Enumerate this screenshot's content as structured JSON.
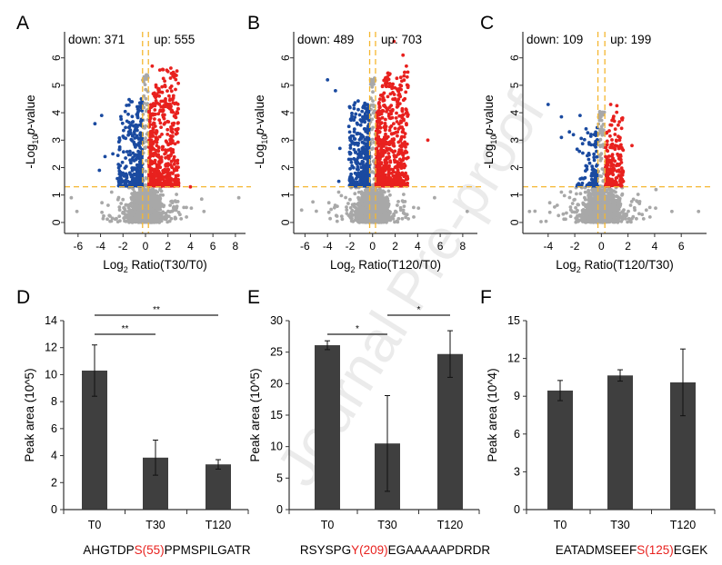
{
  "watermark": "Journal Pre-proof",
  "colors": {
    "up": "#e8211e",
    "down": "#1a4aa0",
    "ns": "#a8a8a8",
    "threshold": "#f5b731",
    "bar": "#3f3f3f"
  },
  "chart_data": [
    {
      "panel": "A",
      "type": "scatter",
      "xlabel_pre": "Log",
      "xlabel_sub": "2",
      "xlabel_post": " Ratio(T30/T0)",
      "ylabel_pre": "-Log",
      "ylabel_sub": "10",
      "ylabel_p": "p",
      "ylabel_post": "-value",
      "down_label": "down: 371",
      "up_label": "up: 555",
      "down_count": 371,
      "up_count": 555,
      "xticks": [
        -6,
        -4,
        -2,
        0,
        2,
        4,
        6,
        8
      ],
      "yticks": [
        0,
        1,
        2,
        3,
        4,
        5,
        6
      ],
      "xlim": [
        -7.2,
        8.9
      ],
      "ylim": [
        -0.4,
        6.95
      ],
      "fc_threshold": 0.26,
      "p_threshold": 1.3,
      "max_up_x": 2.9,
      "max_down_x": -2.4,
      "max_y": 5.6,
      "outliers": [
        {
          "x": -4.5,
          "y": 3.6,
          "c": "down"
        },
        {
          "x": -3.9,
          "y": 3.9,
          "c": "down"
        },
        {
          "x": -4.1,
          "y": 1.9,
          "c": "down"
        },
        {
          "x": -3.6,
          "y": 2.4,
          "c": "down"
        },
        {
          "x": -2.9,
          "y": 2.5,
          "c": "down"
        },
        {
          "x": -2.3,
          "y": 3.0,
          "c": "down"
        },
        {
          "x": -2.5,
          "y": 1.6,
          "c": "down"
        },
        {
          "x": 4.0,
          "y": 1.3,
          "c": "up"
        },
        {
          "x": 0.6,
          "y": 5.7,
          "c": "up"
        },
        {
          "x": 2.0,
          "y": 5.5,
          "c": "up"
        },
        {
          "x": 2.6,
          "y": 5.4,
          "c": "up"
        },
        {
          "x": 8.3,
          "y": 0.9,
          "c": "ns"
        },
        {
          "x": -6.6,
          "y": 0.9,
          "c": "ns"
        },
        {
          "x": -6.1,
          "y": 0.4,
          "c": "ns"
        },
        {
          "x": 5.2,
          "y": 0.4,
          "c": "ns"
        },
        {
          "x": 5.0,
          "y": 0.85,
          "c": "ns"
        }
      ]
    },
    {
      "panel": "B",
      "type": "scatter",
      "xlabel_pre": "Log",
      "xlabel_sub": "2",
      "xlabel_post": " Ratio(T120/T0)",
      "ylabel_pre": "-Log",
      "ylabel_sub": "10",
      "ylabel_p": "p",
      "ylabel_post": "-value",
      "down_label": "down: 489",
      "up_label": "up: 703",
      "down_count": 489,
      "up_count": 703,
      "xticks": [
        -6,
        -4,
        -2,
        0,
        2,
        4,
        6,
        8
      ],
      "yticks": [
        0,
        1,
        2,
        3,
        4,
        5,
        6
      ],
      "xlim": [
        -7.0,
        9.3
      ],
      "ylim": [
        -0.4,
        6.95
      ],
      "fc_threshold": 0.26,
      "p_threshold": 1.3,
      "max_up_x": 3.1,
      "max_down_x": -2.0,
      "max_y": 5.5,
      "outliers": [
        {
          "x": -4.0,
          "y": 5.2,
          "c": "down"
        },
        {
          "x": -3.3,
          "y": 4.8,
          "c": "down"
        },
        {
          "x": -2.1,
          "y": 3.5,
          "c": "down"
        },
        {
          "x": -2.9,
          "y": 2.7,
          "c": "down"
        },
        {
          "x": -3.0,
          "y": 1.5,
          "c": "down"
        },
        {
          "x": -2.1,
          "y": 2.3,
          "c": "down"
        },
        {
          "x": 4.9,
          "y": 3.0,
          "c": "up"
        },
        {
          "x": 1.9,
          "y": 6.6,
          "c": "up"
        },
        {
          "x": 2.7,
          "y": 6.1,
          "c": "up"
        },
        {
          "x": 3.0,
          "y": 5.7,
          "c": "up"
        },
        {
          "x": 3.1,
          "y": 5.0,
          "c": "up"
        },
        {
          "x": 8.4,
          "y": 0.4,
          "c": "ns"
        },
        {
          "x": -6.3,
          "y": 0.45,
          "c": "ns"
        },
        {
          "x": 5.5,
          "y": 0.9,
          "c": "ns"
        },
        {
          "x": -5.3,
          "y": 0.75,
          "c": "ns"
        }
      ]
    },
    {
      "panel": "C",
      "type": "scatter",
      "xlabel_pre": "Log",
      "xlabel_sub": "2",
      "xlabel_post": " Ratio(T120/T30)",
      "ylabel_pre": "-Log",
      "ylabel_sub": "10",
      "ylabel_p": "p",
      "ylabel_post": "-value",
      "down_label": "down: 109",
      "up_label": "up: 199",
      "down_count": 109,
      "up_count": 199,
      "xticks": [
        -4,
        -2,
        0,
        2,
        4,
        6
      ],
      "yticks": [
        0,
        1,
        2,
        3,
        4,
        5,
        6
      ],
      "xlim": [
        -5.9,
        7.9
      ],
      "ylim": [
        -0.4,
        6.95
      ],
      "fc_threshold": 0.26,
      "p_threshold": 1.3,
      "max_up_x": 1.6,
      "max_down_x": -1.8,
      "max_y": 4.3,
      "outliers": [
        {
          "x": -4.0,
          "y": 4.3,
          "c": "down"
        },
        {
          "x": -3.0,
          "y": 3.85,
          "c": "down"
        },
        {
          "x": -1.6,
          "y": 3.9,
          "c": "down"
        },
        {
          "x": -2.4,
          "y": 3.3,
          "c": "down"
        },
        {
          "x": -2.1,
          "y": 3.2,
          "c": "down"
        },
        {
          "x": -3.0,
          "y": 3.1,
          "c": "down"
        },
        {
          "x": 2.3,
          "y": 2.8,
          "c": "up"
        },
        {
          "x": 0.7,
          "y": 4.3,
          "c": "up"
        },
        {
          "x": 7.3,
          "y": 0.4,
          "c": "ns"
        },
        {
          "x": -5.4,
          "y": 0.4,
          "c": "ns"
        },
        {
          "x": 4.1,
          "y": 1.2,
          "c": "ns"
        },
        {
          "x": 5.3,
          "y": 0.4,
          "c": "ns"
        }
      ]
    },
    {
      "panel": "D",
      "type": "bar",
      "categories": [
        "T0",
        "T30",
        "T120"
      ],
      "values": [
        10.3,
        3.85,
        3.35
      ],
      "errors": [
        1.9,
        1.3,
        0.35
      ],
      "ylabel": "Peak area (10^5)",
      "ylim": [
        0,
        14
      ],
      "yticks": [
        0,
        2,
        4,
        6,
        8,
        10,
        12,
        14
      ],
      "significance": [
        {
          "from": 0,
          "to": 2,
          "label": "**",
          "level": "high"
        },
        {
          "from": 0,
          "to": 1,
          "label": "**",
          "level": "low"
        }
      ],
      "peptide": {
        "pre": "AHGTDP",
        "site": "S(55)",
        "post": "PPMSPILGATR"
      }
    },
    {
      "panel": "E",
      "type": "bar",
      "categories": [
        "T0",
        "T30",
        "T120"
      ],
      "values": [
        26.1,
        10.5,
        24.7
      ],
      "errors": [
        0.7,
        7.6,
        3.7
      ],
      "ylabel": "Peak area (10^5)",
      "ylim": [
        0,
        30
      ],
      "yticks": [
        0,
        5,
        10,
        15,
        20,
        25,
        30
      ],
      "significance": [
        {
          "from": 0,
          "to": 1,
          "label": "*",
          "level": "low"
        },
        {
          "from": 1,
          "to": 2,
          "label": "*",
          "level": "high"
        }
      ],
      "peptide": {
        "pre": "RSYSPG",
        "site": "Y(209)",
        "post": "EGAAAAAPDRDR"
      }
    },
    {
      "panel": "F",
      "type": "bar",
      "categories": [
        "T0",
        "T30",
        "T120"
      ],
      "values": [
        9.45,
        10.65,
        10.1
      ],
      "errors": [
        0.8,
        0.45,
        2.65
      ],
      "ylabel": "Peak area (10^4)",
      "ylim": [
        0,
        15
      ],
      "yticks": [
        0,
        3,
        6,
        9,
        12,
        15
      ],
      "significance": [],
      "peptide": {
        "pre": "EATADMSEEF",
        "site": "S(125)",
        "post": "EGEK"
      }
    }
  ]
}
